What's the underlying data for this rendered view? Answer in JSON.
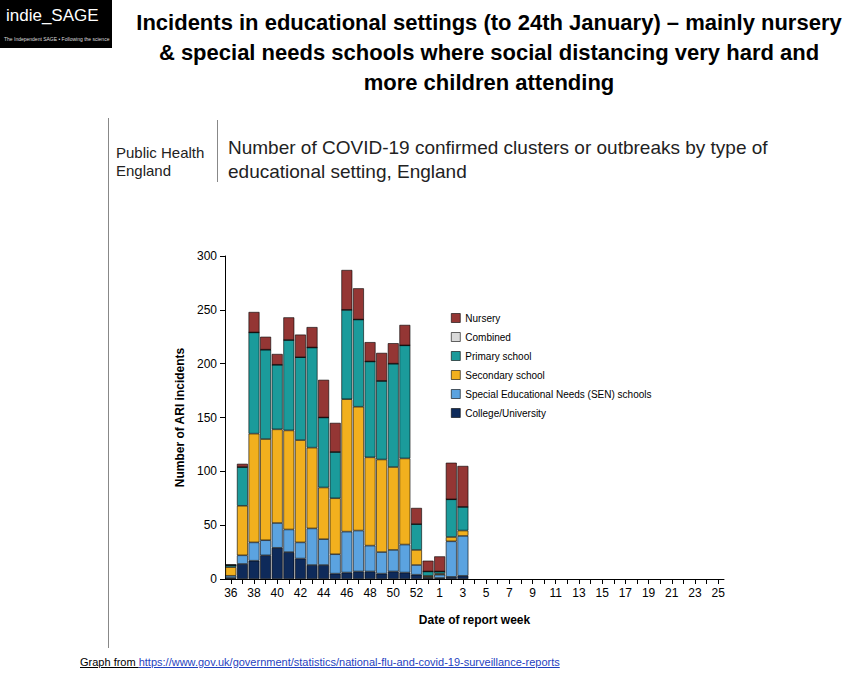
{
  "header": {
    "logo": "indie_SAGE",
    "logo_tagline": "The Independent SAGE • Following the science",
    "title": "Incidents in educational settings (to 24th January) – mainly nursery & special needs schools where social distancing very hard and more children attending"
  },
  "footer": {
    "prefix": "Graph from ",
    "url": "https://www.gov.uk/government/statistics/national-flu-and-covid-19-surveillance-reports"
  },
  "chart_data": {
    "type": "bar",
    "publisher": "Public Health England",
    "title": "Number of COVID-19 confirmed clusters or outbreaks by type of educational setting, England",
    "x_label": "Date of report week",
    "y_label": "Number of ARI incidents",
    "categories": [
      "36",
      null,
      "38",
      null,
      "40",
      null,
      "42",
      null,
      "44",
      null,
      "46",
      null,
      "48",
      null,
      "50",
      null,
      "52",
      null,
      "1",
      null,
      "3",
      null,
      "5",
      null,
      "7",
      null,
      "9",
      null,
      "11",
      null,
      "13",
      null,
      "15",
      null,
      "17",
      null,
      "19",
      null,
      "21",
      null,
      "23",
      null,
      "25"
    ],
    "series": [
      {
        "name": "Nursery",
        "color": "#943634",
        "values": [
          0,
          3,
          19,
          12,
          10,
          21,
          21,
          19,
          35,
          27,
          37,
          29,
          18,
          26,
          19,
          19,
          15,
          10,
          14,
          34,
          38,
          null,
          null,
          null,
          null,
          null,
          null,
          null,
          null,
          null,
          null,
          null,
          null,
          null,
          null,
          null,
          null,
          null,
          null,
          null,
          null,
          null,
          null
        ]
      },
      {
        "name": "Combined",
        "color": "#d9d9d9",
        "values": [
          0,
          0,
          0,
          0,
          0,
          0,
          0,
          0,
          0,
          0,
          0,
          0,
          0,
          0,
          0,
          0,
          0,
          0,
          0,
          0,
          0,
          null,
          null,
          null,
          null,
          null,
          null,
          null,
          null,
          null,
          null,
          null,
          null,
          null,
          null,
          null,
          null,
          null,
          null,
          null,
          null,
          null,
          null
        ]
      },
      {
        "name": "Primary school",
        "color": "#1b9b9b",
        "values": [
          2,
          36,
          94,
          83,
          60,
          84,
          77,
          93,
          65,
          43,
          83,
          81,
          89,
          73,
          96,
          105,
          24,
          4,
          2,
          35,
          22,
          null,
          null,
          null,
          null,
          null,
          null,
          null,
          null,
          null,
          null,
          null,
          null,
          null,
          null,
          null,
          null,
          null,
          null,
          null,
          null,
          null,
          null
        ]
      },
      {
        "name": "Secondary school",
        "color": "#f2b01e",
        "values": [
          8,
          46,
          101,
          94,
          87,
          92,
          95,
          75,
          48,
          52,
          123,
          115,
          82,
          86,
          77,
          80,
          14,
          1,
          1,
          4,
          5,
          null,
          null,
          null,
          null,
          null,
          null,
          null,
          null,
          null,
          null,
          null,
          null,
          null,
          null,
          null,
          null,
          null,
          null,
          null,
          null,
          null,
          null
        ]
      },
      {
        "name": "Special Educational Needs (SEN) schools",
        "color": "#5ba3e0",
        "values": [
          2,
          8,
          17,
          14,
          23,
          21,
          15,
          34,
          24,
          18,
          38,
          38,
          24,
          20,
          20,
          26,
          9,
          1,
          3,
          33,
          37,
          null,
          null,
          null,
          null,
          null,
          null,
          null,
          null,
          null,
          null,
          null,
          null,
          null,
          null,
          null,
          null,
          null,
          null,
          null,
          null,
          null,
          null
        ]
      },
      {
        "name": "College/University",
        "color": "#0e2a5a",
        "values": [
          1,
          14,
          17,
          22,
          29,
          25,
          19,
          13,
          13,
          5,
          6,
          7,
          7,
          5,
          7,
          6,
          4,
          1,
          1,
          2,
          3,
          null,
          null,
          null,
          null,
          null,
          null,
          null,
          null,
          null,
          null,
          null,
          null,
          null,
          null,
          null,
          null,
          null,
          null,
          null,
          null,
          null,
          null
        ]
      }
    ],
    "ylim": [
      0,
      300
    ],
    "yticks": [
      0,
      50,
      100,
      150,
      200,
      250,
      300
    ],
    "stacked": true,
    "grid": false,
    "legend": "right"
  }
}
